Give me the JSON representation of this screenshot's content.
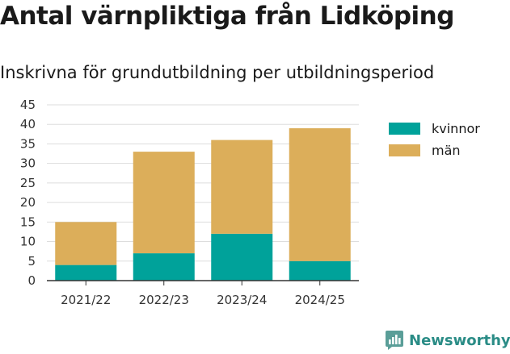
{
  "title": "Antal värnpliktiga från Lidköping",
  "subtitle": "Inskrivna för grundutbildning per utbildningsperiod",
  "brand": "Newsworthy",
  "colors": {
    "kvinnor": "#00a29a",
    "man": "#dcae5a",
    "grid": "#dddddd",
    "axis": "#333333",
    "brand": "#2a8c86"
  },
  "chart_data": {
    "type": "bar",
    "stacked": true,
    "categories": [
      "2021/22",
      "2022/23",
      "2023/24",
      "2024/25"
    ],
    "series": [
      {
        "name": "kvinnor",
        "values": [
          4,
          7,
          12,
          5
        ]
      },
      {
        "name": "män",
        "values": [
          11,
          26,
          24,
          34
        ]
      }
    ],
    "ylim": [
      0,
      45
    ],
    "yticks": [
      0,
      5,
      10,
      15,
      20,
      25,
      30,
      35,
      40,
      45
    ],
    "grid": true,
    "legend_position": "right"
  }
}
